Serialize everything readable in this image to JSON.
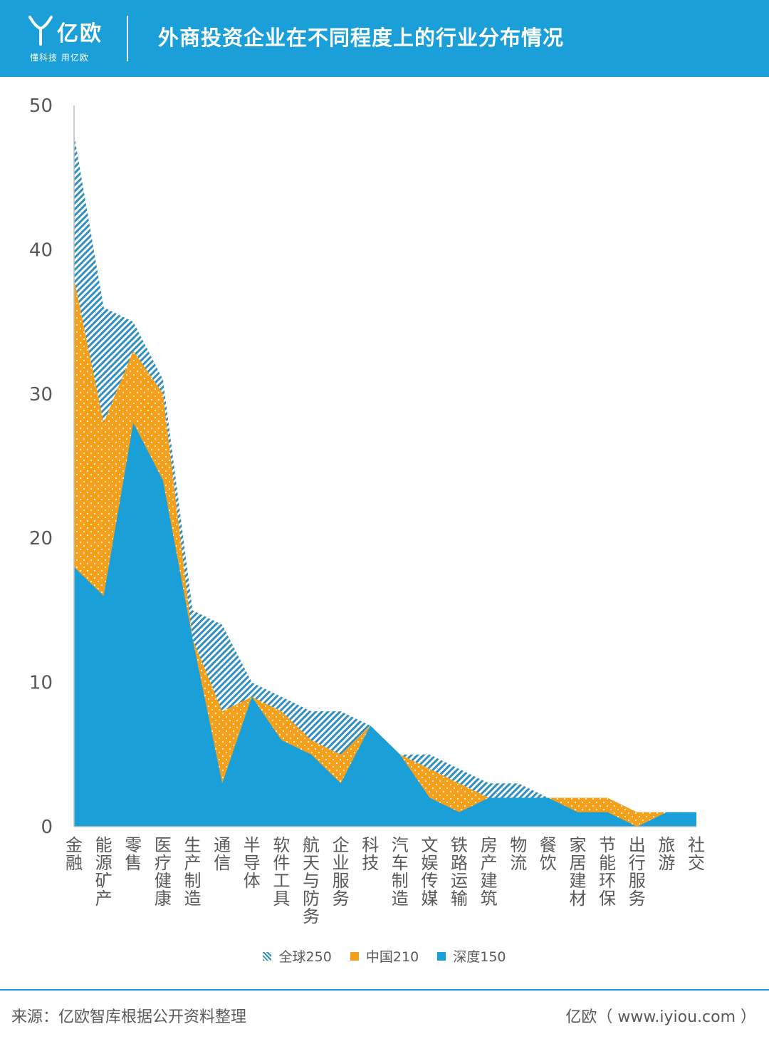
{
  "header": {
    "logo_name": "亿欧",
    "logo_tagline": "懂科技 用亿欧",
    "title": "外商投资企业在不同程度上的行业分布情况"
  },
  "colors": {
    "header_bg": "#1a9fd9",
    "global": "#2f8fc0",
    "china": "#f5a01a",
    "depth": "#1a9fd9"
  },
  "chart_data": {
    "type": "area",
    "title": "外商投资企业在不同程度上的行业分布情况",
    "xlabel": "",
    "ylabel": "",
    "ylim": [
      0,
      50
    ],
    "yticks": [
      0,
      10,
      20,
      30,
      40,
      50
    ],
    "grid": false,
    "legend_position": "bottom",
    "categories": [
      "金融",
      "能源矿产",
      "零售",
      "医疗健康",
      "生产制造",
      "通信",
      "半导体",
      "软件工具",
      "航天与防务",
      "企业服务",
      "科技",
      "汽车制造",
      "文娱传媒",
      "铁路运输",
      "房产建筑",
      "物流",
      "餐饮",
      "家居建材",
      "节能环保",
      "出行服务",
      "旅游",
      "社交"
    ],
    "series": [
      {
        "name": "全球250",
        "values": [
          48,
          36,
          35,
          31,
          15,
          14,
          10,
          9,
          8,
          8,
          7,
          5,
          5,
          4,
          3,
          3,
          2,
          2,
          2,
          1,
          1,
          1
        ]
      },
      {
        "name": "中国210",
        "values": [
          38,
          28,
          33,
          30,
          13,
          8,
          9,
          8,
          6,
          5,
          7,
          5,
          4,
          3,
          2,
          2,
          2,
          2,
          2,
          1,
          1,
          1
        ]
      },
      {
        "name": "深度150",
        "values": [
          18,
          16,
          28,
          24,
          13,
          3,
          9,
          6,
          5,
          3,
          7,
          5,
          2,
          1,
          2,
          2,
          2,
          1,
          1,
          0,
          1,
          1
        ]
      }
    ]
  },
  "legend": [
    {
      "label": "全球250"
    },
    {
      "label": "中国210"
    },
    {
      "label": "深度150"
    }
  ],
  "footer": {
    "source": "来源：亿欧智库根据公开资料整理",
    "site": "亿欧（ www.iyiou.com ）"
  }
}
